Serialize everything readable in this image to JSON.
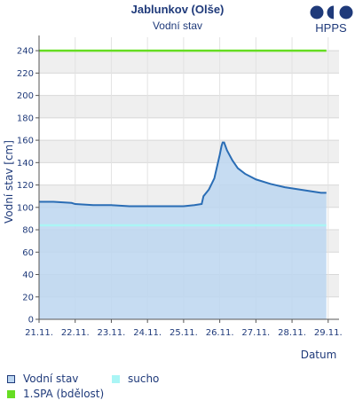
{
  "header": {
    "title": "Jablunkov (Olše)",
    "subtitle": "Vodní stav"
  },
  "logo": {
    "text": "HPPS"
  },
  "chart_data": {
    "type": "area",
    "title": "Jablunkov (Olše)",
    "subtitle": "Vodní stav",
    "xlabel": "Datum",
    "ylabel": "Vodní stav [cm]",
    "x_tick_labels": [
      "21.11.",
      "22.11.",
      "23.11.",
      "24.11.",
      "25.11.",
      "26.11.",
      "27.11.",
      "28.11.",
      "29.11."
    ],
    "y_ticks": [
      0,
      20,
      40,
      60,
      80,
      100,
      120,
      140,
      160,
      180,
      200,
      220,
      240
    ],
    "xlim": [
      0,
      8.3
    ],
    "ylim": [
      0,
      252
    ],
    "grid": true,
    "legend_position": "bottom",
    "series": [
      {
        "name": "Vodní stav",
        "kind": "area",
        "color": "#2a6db5",
        "fill": "#bcd6f0",
        "x": [
          0,
          0.4,
          0.9,
          1.0,
          1.5,
          2.0,
          2.5,
          3.0,
          3.5,
          4.0,
          4.3,
          4.5,
          4.55,
          4.7,
          4.85,
          5.0,
          5.05,
          5.08,
          5.12,
          5.2,
          5.35,
          5.5,
          5.7,
          6.0,
          6.4,
          6.8,
          7.2,
          7.6,
          7.8,
          7.95
        ],
        "y": [
          105,
          105,
          104,
          103,
          102,
          102,
          101,
          101,
          101,
          101,
          102,
          103,
          110,
          116,
          126,
          147,
          155,
          158,
          158,
          151,
          142,
          135,
          130,
          125,
          121,
          118,
          116,
          114,
          113,
          113
        ]
      },
      {
        "name": "sucho",
        "kind": "hline",
        "color": "#aaf5f5",
        "value": 84
      },
      {
        "name": "1.SPA (bdělost)",
        "kind": "hline",
        "color": "#66dd22",
        "value": 240
      }
    ]
  }
}
